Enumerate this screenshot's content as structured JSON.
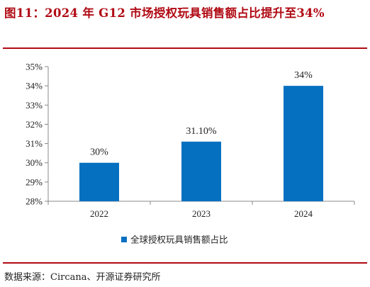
{
  "title": "图11：2024 年 G12 市场授权玩具销售额占比提升至34%",
  "source": "数据来源：Circana、开源证券研究所",
  "colors": {
    "bar": "#0570c0",
    "title": "#b00a14"
  },
  "chart_data": {
    "type": "bar",
    "categories": [
      "2022",
      "2023",
      "2024"
    ],
    "series": [
      {
        "name": "全球授权玩具销售额占比",
        "values": [
          30,
          31.1,
          34
        ],
        "labels": [
          "30%",
          "31.10%",
          "34%"
        ]
      }
    ],
    "ylim": [
      28,
      35
    ],
    "yticks": [
      "28%",
      "29%",
      "30%",
      "31%",
      "32%",
      "33%",
      "34%",
      "35%"
    ],
    "grid": false,
    "legend": "bottom-center"
  }
}
